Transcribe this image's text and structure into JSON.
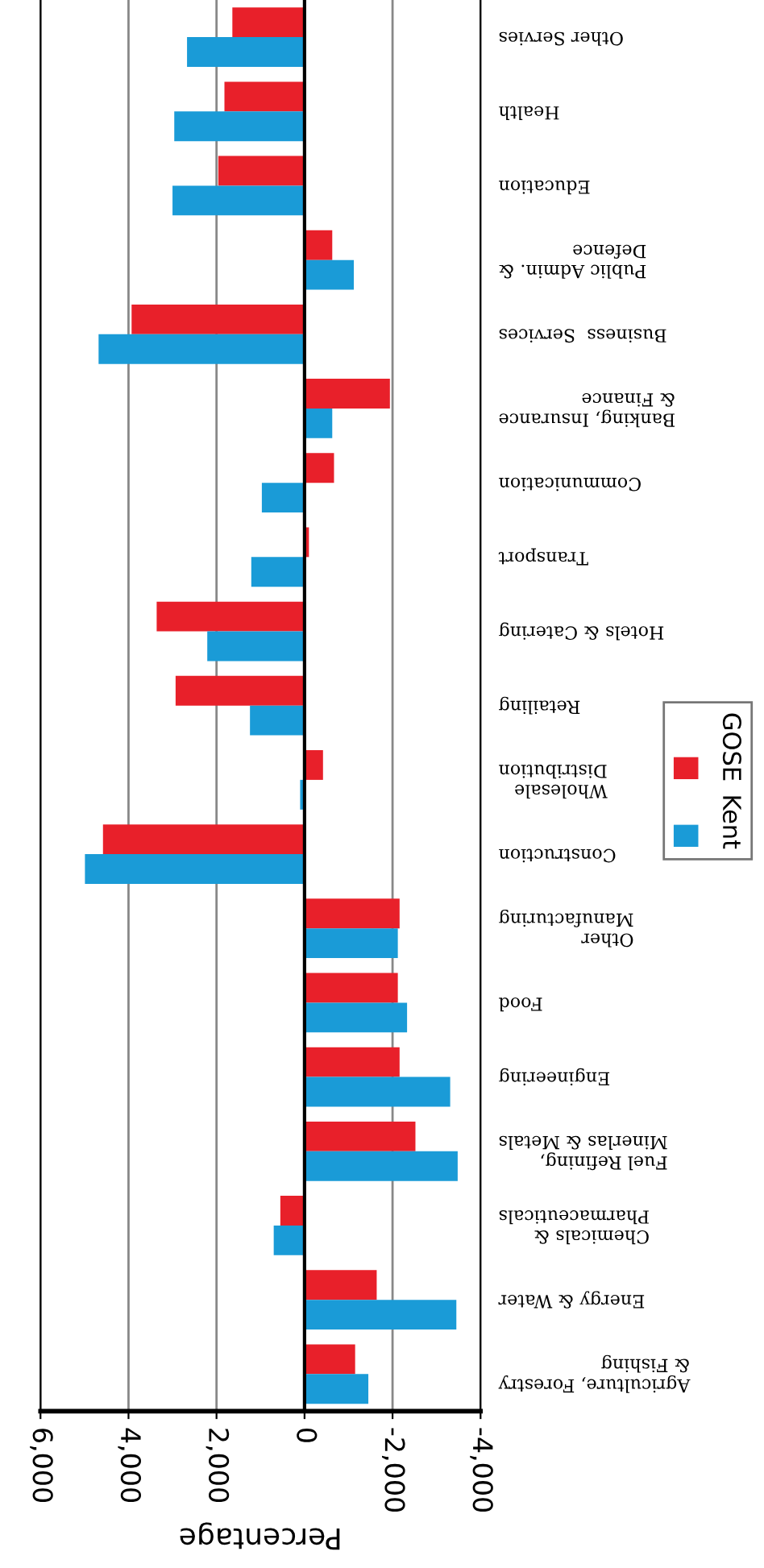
{
  "chart_data": {
    "type": "bar",
    "orientation": "horizontal",
    "xlabel": "Percentage",
    "categories": [
      "Other Servies",
      "Health",
      "Education",
      "Public Admin. &\nDefence",
      "Business  Services",
      "Banking, Insurance\n& Finance",
      "Communication",
      "Transport",
      "Hotels & Catering",
      "Retailing",
      "Wholesale\nDistribution",
      "Construction",
      "Other\nManufacturing",
      "Food",
      "Engineering",
      "Fuel Refining,\nMinerlas & Metals",
      "Chemicals &\nPharmaceuticals",
      "Energy & Water",
      "Agriculture, Forestry\n& Fishing"
    ],
    "series": [
      {
        "name": "GOSE",
        "color": "#e8202a",
        "values": [
          1640,
          1820,
          1960,
          -630,
          3930,
          -1940,
          -670,
          -100,
          3360,
          2930,
          -420,
          4580,
          -2160,
          -2120,
          -2160,
          -2520,
          550,
          -1640,
          -1150
        ]
      },
      {
        "name": "Kent",
        "color": "#1a9bd7",
        "values": [
          2670,
          2960,
          3000,
          -1120,
          4680,
          -630,
          970,
          1210,
          2210,
          1240,
          100,
          4990,
          -2120,
          -2330,
          -3310,
          -3480,
          700,
          -3450,
          -1450
        ]
      }
    ],
    "xlim": [
      6000,
      -4000
    ],
    "xticks": [
      {
        "value": 6000,
        "label": "6,000"
      },
      {
        "value": 4000,
        "label": "4,000"
      },
      {
        "value": 2000,
        "label": "2,000"
      },
      0,
      {
        "value": -2000,
        "label": "-2,000"
      },
      {
        "value": -4000,
        "label": "-4,000"
      }
    ],
    "grid": "x",
    "legend": "right"
  }
}
